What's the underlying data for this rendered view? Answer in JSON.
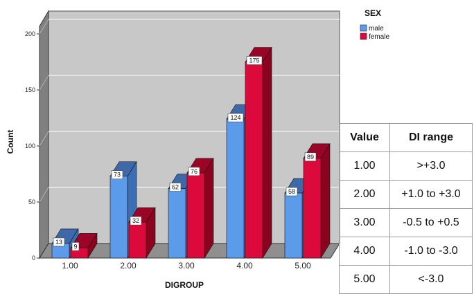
{
  "chart_data": {
    "type": "bar",
    "title": "",
    "xlabel": "DIGROUP",
    "ylabel": "Count",
    "ylim": [
      0,
      210
    ],
    "yticks": [
      0,
      50,
      100,
      150,
      200
    ],
    "categories": [
      "1.00",
      "2.00",
      "3.00",
      "4.00",
      "5.00"
    ],
    "legend_title": "SEX",
    "legend_position": "top-right",
    "series": [
      {
        "name": "male",
        "values": [
          13,
          73,
          62,
          124,
          58
        ],
        "color": "#5b9bea",
        "side_color": "#3a6eb5",
        "top_color": "#3f68a8"
      },
      {
        "name": "female",
        "values": [
          9,
          32,
          76,
          175,
          89
        ],
        "color": "#dc0a3c",
        "side_color": "#8a0420",
        "top_color": "#9a0426"
      }
    ],
    "data_labels": true,
    "grid": true,
    "style": "3d",
    "background_color": "#c8c8c8",
    "wall_color": "#808080"
  },
  "table": {
    "headers": [
      "Value",
      "DI range"
    ],
    "rows": [
      [
        "1.00",
        ">+3.0"
      ],
      [
        "2.00",
        "+1.0 to +3.0"
      ],
      [
        "3.00",
        "-0.5 to +0.5"
      ],
      [
        "4.00",
        "-1.0 to -3.0"
      ],
      [
        "5.00",
        "<-3.0"
      ]
    ]
  }
}
